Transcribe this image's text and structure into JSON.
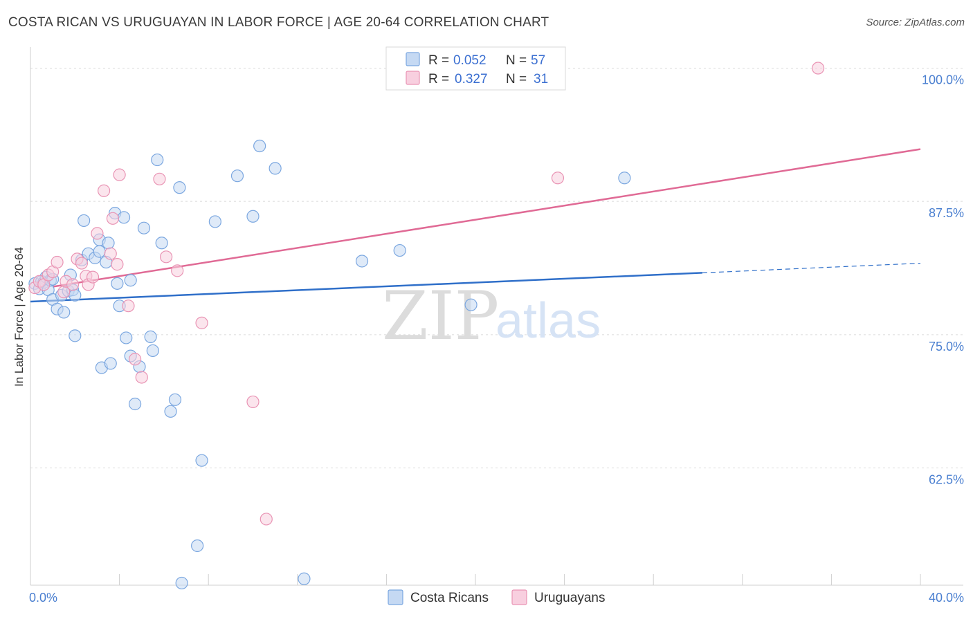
{
  "title": "COSTA RICAN VS URUGUAYAN IN LABOR FORCE | AGE 20-64 CORRELATION CHART",
  "source": "Source: ZipAtlas.com",
  "watermark": {
    "zip": "ZIP",
    "atlas": "atlas"
  },
  "chart_data": {
    "type": "scatter",
    "xlabel": "",
    "ylabel": "In Labor Force | Age 20-64",
    "xlim": [
      0,
      40
    ],
    "ylim": [
      51.5,
      102.5
    ],
    "x_tick_labels": [
      {
        "value": 0,
        "label": "0.0%"
      },
      {
        "value": 40,
        "label": "40.0%"
      }
    ],
    "y_tick_labels": [
      {
        "value": 100,
        "label": "100.0%"
      },
      {
        "value": 87.5,
        "label": "87.5%"
      },
      {
        "value": 75,
        "label": "75.0%"
      },
      {
        "value": 62.5,
        "label": "62.5%"
      }
    ],
    "legend": {
      "rows": [
        {
          "r_label": "R =",
          "r_value": "0.052",
          "n_label": "N =",
          "n_value": "57"
        },
        {
          "r_label": "R =",
          "r_value": "0.327",
          "n_label": "N =",
          "n_value": "31"
        }
      ]
    },
    "series": [
      {
        "name": "Costa Ricans",
        "color": "#7ba7e0",
        "fill": "#c5d9f3",
        "line_color": "#2f6fc9",
        "trend": {
          "x0": 0,
          "y0": 78.1,
          "x1": 30.2,
          "y1": 80.8,
          "dash_to_x": 40,
          "dash_to_y": 81.7
        },
        "points": [
          [
            0.2,
            79.8
          ],
          [
            0.4,
            79.3
          ],
          [
            0.5,
            80.0
          ],
          [
            0.6,
            79.9
          ],
          [
            0.7,
            80.4
          ],
          [
            0.8,
            79.2
          ],
          [
            0.9,
            80.1
          ],
          [
            1.0,
            80.2
          ],
          [
            1.0,
            78.3
          ],
          [
            1.2,
            77.4
          ],
          [
            1.4,
            78.7
          ],
          [
            1.5,
            77.1
          ],
          [
            1.7,
            79.1
          ],
          [
            1.8,
            80.6
          ],
          [
            1.9,
            79.2
          ],
          [
            2.0,
            78.7
          ],
          [
            2.0,
            74.9
          ],
          [
            2.3,
            82.0
          ],
          [
            2.4,
            85.7
          ],
          [
            2.6,
            82.6
          ],
          [
            2.9,
            82.2
          ],
          [
            3.1,
            82.8
          ],
          [
            3.1,
            83.9
          ],
          [
            3.2,
            71.9
          ],
          [
            3.4,
            81.8
          ],
          [
            3.5,
            83.6
          ],
          [
            3.6,
            72.3
          ],
          [
            3.8,
            86.4
          ],
          [
            3.9,
            79.8
          ],
          [
            4.0,
            77.7
          ],
          [
            4.2,
            86.0
          ],
          [
            4.3,
            74.7
          ],
          [
            4.5,
            80.1
          ],
          [
            4.5,
            73.0
          ],
          [
            4.7,
            68.5
          ],
          [
            4.9,
            72.0
          ],
          [
            5.1,
            85.0
          ],
          [
            5.4,
            74.8
          ],
          [
            5.5,
            73.5
          ],
          [
            5.7,
            91.4
          ],
          [
            5.9,
            83.6
          ],
          [
            6.3,
            67.8
          ],
          [
            6.5,
            68.9
          ],
          [
            6.7,
            88.8
          ],
          [
            6.8,
            51.7
          ],
          [
            7.5,
            55.2
          ],
          [
            7.7,
            63.2
          ],
          [
            8.3,
            85.6
          ],
          [
            9.3,
            89.9
          ],
          [
            10.0,
            86.1
          ],
          [
            10.3,
            92.7
          ],
          [
            11.0,
            90.6
          ],
          [
            12.3,
            52.1
          ],
          [
            14.9,
            81.9
          ],
          [
            16.6,
            82.9
          ],
          [
            19.8,
            77.8
          ],
          [
            26.7,
            89.7
          ]
        ]
      },
      {
        "name": "Uruguayans",
        "color": "#e994b4",
        "fill": "#f8cfdf",
        "line_color": "#e06a95",
        "trend": {
          "x0": 1.0,
          "y0": 79.5,
          "x1": 40,
          "y1": 92.4
        },
        "points": [
          [
            0.2,
            79.4
          ],
          [
            0.4,
            80.0
          ],
          [
            0.6,
            79.7
          ],
          [
            0.8,
            80.6
          ],
          [
            1.0,
            80.9
          ],
          [
            1.2,
            81.8
          ],
          [
            1.5,
            79.0
          ],
          [
            1.6,
            80.0
          ],
          [
            1.9,
            79.7
          ],
          [
            2.1,
            82.1
          ],
          [
            2.3,
            81.7
          ],
          [
            2.5,
            80.5
          ],
          [
            2.6,
            79.7
          ],
          [
            2.8,
            80.4
          ],
          [
            3.0,
            84.5
          ],
          [
            3.3,
            88.5
          ],
          [
            3.6,
            82.6
          ],
          [
            3.7,
            85.9
          ],
          [
            3.9,
            81.6
          ],
          [
            4.0,
            90.0
          ],
          [
            4.4,
            77.7
          ],
          [
            4.7,
            72.7
          ],
          [
            5.0,
            71.0
          ],
          [
            5.8,
            89.6
          ],
          [
            6.1,
            82.3
          ],
          [
            6.6,
            81.0
          ],
          [
            7.7,
            76.1
          ],
          [
            10.0,
            68.7
          ],
          [
            10.6,
            57.7
          ],
          [
            23.7,
            89.7
          ],
          [
            35.4,
            100.0
          ]
        ]
      }
    ]
  }
}
